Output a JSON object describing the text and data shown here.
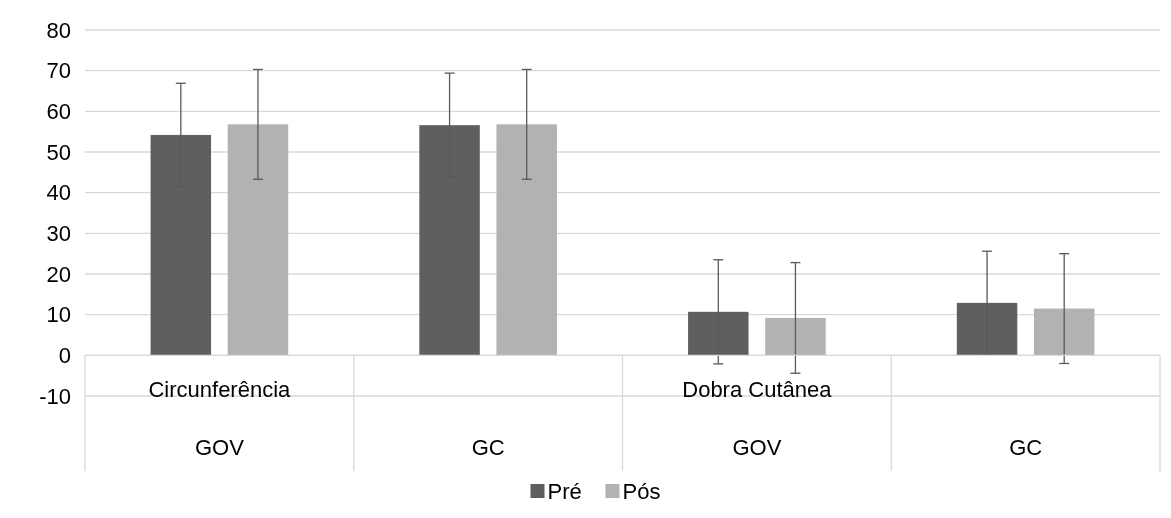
{
  "chart_data": {
    "type": "bar",
    "categories": [
      "GOV",
      "GC",
      "GOV",
      "GC"
    ],
    "annotations": [
      "Circunferência",
      "Dobra Cutânea"
    ],
    "series": [
      {
        "name": "Pré",
        "color": "#5f5f5f",
        "values": [
          54.2,
          56.6,
          10.7,
          12.9
        ],
        "errors": [
          12.7,
          12.8,
          12.8,
          12.7
        ]
      },
      {
        "name": "Pós",
        "color": "#b2b2b2",
        "values": [
          56.8,
          56.8,
          9.2,
          11.5
        ],
        "errors": [
          13.5,
          13.5,
          13.6,
          13.5
        ]
      }
    ],
    "ylim": [
      -10,
      80
    ],
    "yticks": [
      -10,
      0,
      10,
      20,
      30,
      40,
      50,
      60,
      70,
      80
    ],
    "grid": "y",
    "legend": "bottom"
  }
}
